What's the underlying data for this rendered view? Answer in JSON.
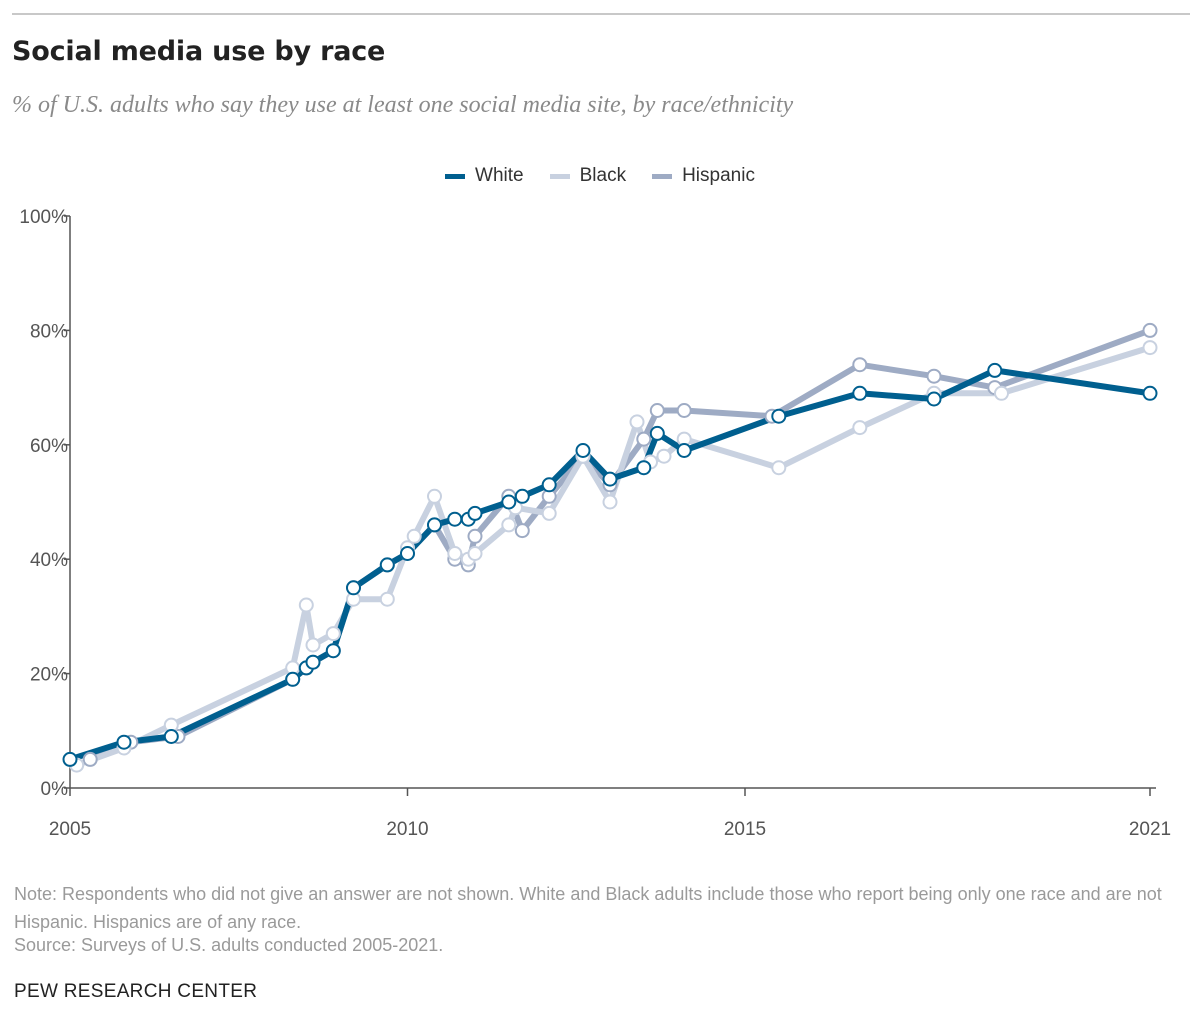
{
  "header": {
    "title": "Social media use by race",
    "subtitle": "% of U.S. adults who say they use at least one social media site, by race/ethnicity"
  },
  "footer": {
    "note": "Note: Respondents who did not give an answer are not shown. White and Black adults include those who report being only one race and are not Hispanic. Hispanics are of any race.",
    "source": "Source: Surveys of U.S. adults conducted 2005-2021.",
    "brand": "PEW RESEARCH CENTER"
  },
  "chart_data": {
    "type": "line",
    "xlim": [
      2005,
      2021
    ],
    "ylim": [
      0,
      100
    ],
    "xticks": [
      2005,
      2010,
      2015,
      2021
    ],
    "yticks": [
      0,
      20,
      40,
      60,
      80,
      100
    ],
    "ytick_labels": [
      "0%",
      "20%",
      "40%",
      "60%",
      "80%",
      "100%"
    ],
    "grid": false,
    "legend_position": "top-center",
    "series": [
      {
        "name": "Hispanic",
        "color": "#9eabc4",
        "points": [
          [
            2005.3,
            5
          ],
          [
            2005.9,
            8
          ],
          [
            2006.6,
            9
          ],
          [
            2008.3,
            19
          ],
          [
            2008.5,
            21
          ],
          [
            2008.6,
            22
          ],
          [
            2008.9,
            24
          ],
          [
            2009.2,
            35
          ],
          [
            2009.7,
            39
          ],
          [
            2010.0,
            41
          ],
          [
            2010.4,
            46
          ],
          [
            2010.7,
            40
          ],
          [
            2010.9,
            39
          ],
          [
            2011.0,
            44
          ],
          [
            2011.5,
            51
          ],
          [
            2011.7,
            45
          ],
          [
            2012.1,
            51
          ],
          [
            2012.6,
            58
          ],
          [
            2013.0,
            53
          ],
          [
            2013.5,
            61
          ],
          [
            2013.7,
            66
          ],
          [
            2014.1,
            66
          ],
          [
            2015.4,
            65
          ],
          [
            2016.7,
            74
          ],
          [
            2017.8,
            72
          ],
          [
            2018.7,
            70
          ],
          [
            2021.0,
            80
          ]
        ]
      },
      {
        "name": "Black",
        "color": "#c8d1e0",
        "points": [
          [
            2005.1,
            4
          ],
          [
            2005.8,
            7
          ],
          [
            2006.5,
            11
          ],
          [
            2008.3,
            21
          ],
          [
            2008.5,
            32
          ],
          [
            2008.6,
            25
          ],
          [
            2008.9,
            27
          ],
          [
            2009.2,
            33
          ],
          [
            2009.7,
            33
          ],
          [
            2010.0,
            42
          ],
          [
            2010.1,
            44
          ],
          [
            2010.4,
            51
          ],
          [
            2010.7,
            41
          ],
          [
            2010.9,
            40
          ],
          [
            2011.0,
            41
          ],
          [
            2011.5,
            46
          ],
          [
            2011.6,
            49
          ],
          [
            2012.1,
            48
          ],
          [
            2012.6,
            58
          ],
          [
            2013.0,
            50
          ],
          [
            2013.4,
            64
          ],
          [
            2013.6,
            57
          ],
          [
            2013.8,
            58
          ],
          [
            2014.1,
            61
          ],
          [
            2015.5,
            56
          ],
          [
            2016.7,
            63
          ],
          [
            2017.8,
            69
          ],
          [
            2018.8,
            69
          ],
          [
            2021.0,
            77
          ]
        ]
      },
      {
        "name": "White",
        "color": "#005f8f",
        "points": [
          [
            2005.0,
            5
          ],
          [
            2005.8,
            8
          ],
          [
            2006.5,
            9
          ],
          [
            2008.3,
            19
          ],
          [
            2008.5,
            21
          ],
          [
            2008.6,
            22
          ],
          [
            2008.9,
            24
          ],
          [
            2009.2,
            35
          ],
          [
            2009.7,
            39
          ],
          [
            2010.0,
            41
          ],
          [
            2010.4,
            46
          ],
          [
            2010.7,
            47
          ],
          [
            2010.9,
            47
          ],
          [
            2011.0,
            48
          ],
          [
            2011.5,
            50
          ],
          [
            2011.7,
            51
          ],
          [
            2012.1,
            53
          ],
          [
            2012.6,
            59
          ],
          [
            2013.0,
            54
          ],
          [
            2013.5,
            56
          ],
          [
            2013.7,
            62
          ],
          [
            2014.1,
            59
          ],
          [
            2015.5,
            65
          ],
          [
            2016.7,
            69
          ],
          [
            2017.8,
            68
          ],
          [
            2018.7,
            73
          ],
          [
            2021.0,
            69
          ]
        ]
      }
    ],
    "legend_order": [
      "White",
      "Black",
      "Hispanic"
    ]
  }
}
